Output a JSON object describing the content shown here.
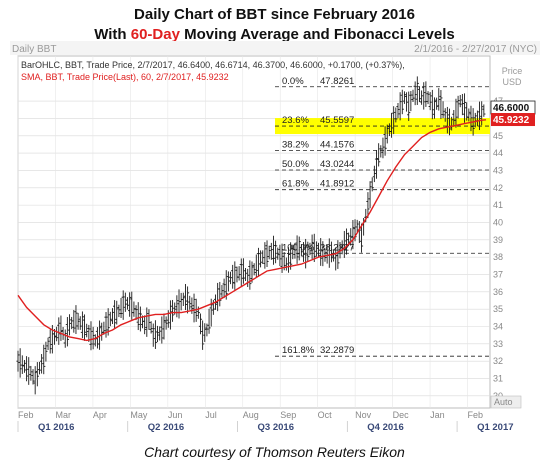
{
  "title_line1": "Daily Chart of BBT since February 2016",
  "title_line2_pre": "With ",
  "title_line2_red": "60-Day",
  "title_line2_post": " Moving Average and Fibonacci Levels",
  "caption": "Chart courtesy of Thomson Reuters Eikon",
  "colors": {
    "price": "#1a1a1a",
    "sma": "#e02020",
    "highlight": "#ffff00",
    "title_accent": "#e02020",
    "grid": "#d9d9d9",
    "axis_text": "#9a9a9a"
  },
  "chart_data": {
    "type": "ohlc",
    "header_left": "Daily BBT",
    "header_right": "2/1/2016 - 2/27/2017 (NYC)",
    "legend_line1": "BarOHLC, BBT, Trade Price, 2/7/2017, 46.6400, 46.6714, 46.3700, 46.6000, +0.1700, (+0.37%),",
    "legend_line2": "SMA, BBT, Trade Price(Last), 60, 2/7/2017, 45.9232",
    "y_unit_label": "Price USD",
    "y_unit_line1": "Price",
    "y_unit_line2": "USD",
    "ylim": [
      29.3,
      49.6
    ],
    "y_ticks": [
      30,
      31,
      32,
      33,
      34,
      35,
      36,
      37,
      38,
      39,
      40,
      41,
      42,
      43,
      44,
      45,
      46,
      47
    ],
    "auto_label": "Auto",
    "last_price_tag": "46.6000",
    "last_sma_tag": "45.9232",
    "month_labels": [
      "Feb",
      "Mar",
      "Apr",
      "May",
      "Jun",
      "Jul",
      "Aug",
      "Sep",
      "Oct",
      "Nov",
      "Dec",
      "Jan",
      "Feb"
    ],
    "quarter_labels": [
      "Q1 2016",
      "Q2 2016",
      "Q3 2016",
      "Q4 2016",
      "Q1 2017"
    ],
    "fib_levels": [
      {
        "pct": "0.0%",
        "value": 47.8261,
        "highlight": false
      },
      {
        "pct": "23.6%",
        "value": 45.5597,
        "highlight": true
      },
      {
        "pct": "38.2%",
        "value": 44.1576,
        "highlight": false
      },
      {
        "pct": "50.0%",
        "value": 43.0244,
        "highlight": false
      },
      {
        "pct": "61.8%",
        "value": 41.8912,
        "highlight": false
      },
      {
        "pct": "100.0%",
        "value": 38.2227,
        "highlight": false
      },
      {
        "pct": "161.8%",
        "value": 32.2879,
        "highlight": false
      }
    ],
    "price_series": {
      "name": "BBT",
      "points": [
        [
          0,
          32
        ],
        [
          3,
          31.7
        ],
        [
          6,
          31.3
        ],
        [
          8,
          30.9
        ],
        [
          10,
          31.6
        ],
        [
          12,
          32.1
        ],
        [
          14,
          33
        ],
        [
          17,
          33.4
        ],
        [
          20,
          33.9
        ],
        [
          22,
          33.3
        ],
        [
          24,
          34.1
        ],
        [
          27,
          34.4
        ],
        [
          30,
          34.1
        ],
        [
          33,
          33.6
        ],
        [
          36,
          33.2
        ],
        [
          38,
          33.5
        ],
        [
          41,
          34.1
        ],
        [
          44,
          34.6
        ],
        [
          47,
          34.9
        ],
        [
          50,
          35.4
        ],
        [
          53,
          35.2
        ],
        [
          56,
          34.6
        ],
        [
          59,
          34.1
        ],
        [
          61,
          34.4
        ],
        [
          63,
          33.5
        ],
        [
          66,
          33.6
        ],
        [
          69,
          34.2
        ],
        [
          72,
          34.9
        ],
        [
          75,
          35.3
        ],
        [
          78,
          35.7
        ],
        [
          81,
          35.2
        ],
        [
          84,
          34.8
        ],
        [
          86,
          33.5
        ],
        [
          88,
          33.8
        ],
        [
          90,
          34.8
        ],
        [
          93,
          35.7
        ],
        [
          96,
          36.2
        ],
        [
          99,
          36.8
        ],
        [
          102,
          37
        ],
        [
          105,
          37.2
        ],
        [
          107,
          36.8
        ],
        [
          110,
          37.3
        ],
        [
          113,
          37.9
        ],
        [
          116,
          38.2
        ],
        [
          119,
          38.4
        ],
        [
          122,
          38.1
        ],
        [
          125,
          37.6
        ],
        [
          128,
          38.3
        ],
        [
          131,
          38.5
        ],
        [
          134,
          38.2
        ],
        [
          137,
          38.6
        ],
        [
          140,
          38.4
        ],
        [
          143,
          38.1
        ],
        [
          146,
          38.3
        ],
        [
          148,
          37.9
        ],
        [
          150,
          38.4
        ],
        [
          153,
          38.9
        ],
        [
          156,
          39.3
        ],
        [
          158,
          39.8
        ],
        [
          160,
          39.1
        ],
        [
          162,
          40.4
        ],
        [
          164,
          41.6
        ],
        [
          166,
          42.8
        ],
        [
          168,
          43.9
        ],
        [
          170,
          44.3
        ],
        [
          172,
          45.1
        ],
        [
          174,
          45.6
        ],
        [
          176,
          46.2
        ],
        [
          178,
          46.7
        ],
        [
          180,
          47.2
        ],
        [
          182,
          46.7
        ],
        [
          184,
          47.3
        ],
        [
          186,
          47.6
        ],
        [
          188,
          47.2
        ],
        [
          190,
          47.4
        ],
        [
          192,
          47
        ],
        [
          194,
          46.6
        ],
        [
          196,
          47.1
        ],
        [
          198,
          46.5
        ],
        [
          200,
          45.9
        ],
        [
          202,
          45.7
        ],
        [
          204,
          46.3
        ],
        [
          206,
          47
        ],
        [
          208,
          46.6
        ],
        [
          210,
          46.2
        ],
        [
          212,
          45.8
        ],
        [
          214,
          46
        ],
        [
          216,
          46.3
        ],
        [
          218,
          46.6
        ]
      ]
    },
    "sma_series": {
      "name": "SMA 60",
      "points": [
        [
          0,
          35.8
        ],
        [
          4,
          35.1
        ],
        [
          8,
          34.6
        ],
        [
          12,
          34.1
        ],
        [
          16,
          33.8
        ],
        [
          20,
          33.6
        ],
        [
          24,
          33.4
        ],
        [
          28,
          33.3
        ],
        [
          32,
          33.2
        ],
        [
          36,
          33.3
        ],
        [
          40,
          33.6
        ],
        [
          44,
          33.8
        ],
        [
          48,
          34.1
        ],
        [
          52,
          34.3
        ],
        [
          56,
          34.5
        ],
        [
          60,
          34.6
        ],
        [
          64,
          34.7
        ],
        [
          68,
          34.7
        ],
        [
          72,
          34.8
        ],
        [
          76,
          34.8
        ],
        [
          80,
          34.9
        ],
        [
          84,
          35
        ],
        [
          88,
          35.2
        ],
        [
          92,
          35.4
        ],
        [
          96,
          35.7
        ],
        [
          100,
          36
        ],
        [
          104,
          36.3
        ],
        [
          108,
          36.6
        ],
        [
          112,
          36.9
        ],
        [
          116,
          37.2
        ],
        [
          120,
          37.3
        ],
        [
          124,
          37.4
        ],
        [
          128,
          37.5
        ],
        [
          132,
          37.6
        ],
        [
          136,
          37.8
        ],
        [
          140,
          38
        ],
        [
          144,
          38.1
        ],
        [
          148,
          38.2
        ],
        [
          152,
          38.5
        ],
        [
          156,
          39
        ],
        [
          160,
          39.8
        ],
        [
          164,
          40.6
        ],
        [
          168,
          41.5
        ],
        [
          172,
          42.4
        ],
        [
          176,
          43.2
        ],
        [
          180,
          43.9
        ],
        [
          184,
          44.4
        ],
        [
          188,
          44.9
        ],
        [
          192,
          45.2
        ],
        [
          196,
          45.4
        ],
        [
          200,
          45.5
        ],
        [
          204,
          45.6
        ],
        [
          208,
          45.7
        ],
        [
          212,
          45.8
        ],
        [
          216,
          45.9
        ],
        [
          218,
          45.92
        ]
      ]
    }
  }
}
